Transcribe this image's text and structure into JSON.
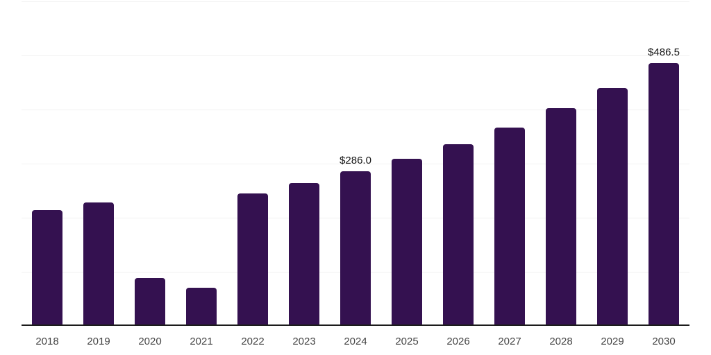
{
  "page": {
    "background": "#ffffff"
  },
  "chart_data": {
    "type": "bar",
    "title": "",
    "xlabel": "",
    "ylabel": "",
    "categories": [
      "2018",
      "2019",
      "2020",
      "2021",
      "2022",
      "2023",
      "2024",
      "2025",
      "2026",
      "2027",
      "2028",
      "2029",
      "2030"
    ],
    "values": [
      214.5,
      228.0,
      88.0,
      70.0,
      245.0,
      264.0,
      286.0,
      309.0,
      336.0,
      367.0,
      402.0,
      440.0,
      486.5
    ],
    "data_labels": {
      "2024": "$286.0",
      "2030": "$486.5"
    },
    "ylim": [
      0,
      600
    ],
    "grid_step": 100,
    "gridlines": "horizontal",
    "y_axis_labels_visible": false,
    "legend": "none",
    "colors": {
      "bar": "#341150",
      "grid": "#f1f1f1",
      "baseline": "#1c1c1c",
      "x_tick_label": "#454545",
      "value_label": "#141414"
    }
  }
}
